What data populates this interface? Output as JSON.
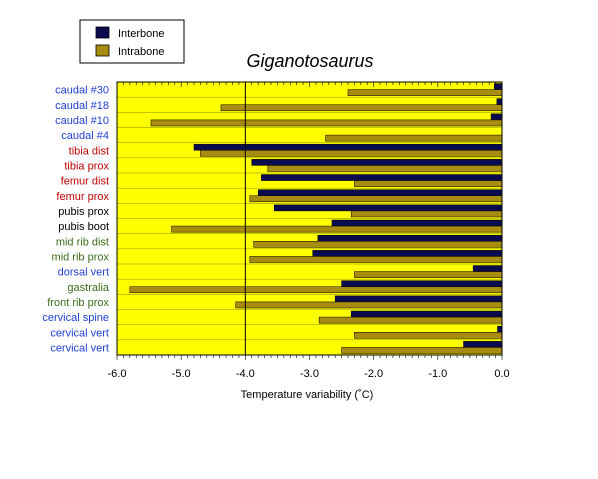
{
  "chart_data": {
    "type": "bar",
    "orientation": "horizontal",
    "title": "Giganotosaurus",
    "xlabel": "Temperature variability (˚C)",
    "ylabel": "",
    "xlim": [
      -6.0,
      0.0
    ],
    "xticks": [
      -6.0,
      -5.0,
      -4.0,
      -3.0,
      -2.0,
      -1.0,
      0.0
    ],
    "xtick_labels": [
      "-6.0",
      "-5.0",
      "-4.0",
      "-3.0",
      "-2.0",
      "-1.0",
      "0.0"
    ],
    "reference_line": -4.0,
    "plot_background": "#ffff00",
    "legend_position": "top-left, outside plot",
    "categories": [
      "caudal #30",
      "caudal #18",
      "caudal #10",
      "caudal #4",
      "tibia dist",
      "tibia prox",
      "femur dist",
      "femur prox",
      "pubis prox",
      "pubis boot",
      "mid rib dist",
      "mid rib prox",
      "dorsal vert",
      "gastralia",
      "front rib prox",
      "cervical spine",
      "cervical vert",
      "cervical vert"
    ],
    "category_colors": [
      "#1f3fd6",
      "#1f3fd6",
      "#1f3fd6",
      "#1f3fd6",
      "#c00000",
      "#c00000",
      "#c00000",
      "#c00000",
      "#000000",
      "#000000",
      "#3a6e1a",
      "#3a6e1a",
      "#1f3fd6",
      "#3a6e1a",
      "#3a6e1a",
      "#1f3fd6",
      "#1f3fd6",
      "#1f3fd6"
    ],
    "series": [
      {
        "name": "Interbone",
        "color": "#0b0b4f",
        "values": [
          -0.12,
          -0.08,
          -0.17,
          0.0,
          -4.8,
          -3.9,
          -3.75,
          -3.8,
          -3.55,
          -2.65,
          -2.87,
          -2.95,
          -0.45,
          -2.5,
          -2.6,
          -2.35,
          -0.07,
          -0.6
        ]
      },
      {
        "name": "Intrabone",
        "color": "#a88c10",
        "values": [
          -2.4,
          -4.38,
          -5.47,
          -2.75,
          -4.7,
          -3.65,
          -2.3,
          -3.93,
          -2.35,
          -5.15,
          -3.87,
          -3.93,
          -2.3,
          -5.8,
          -4.15,
          -2.85,
          -2.3,
          -2.5
        ]
      }
    ]
  }
}
